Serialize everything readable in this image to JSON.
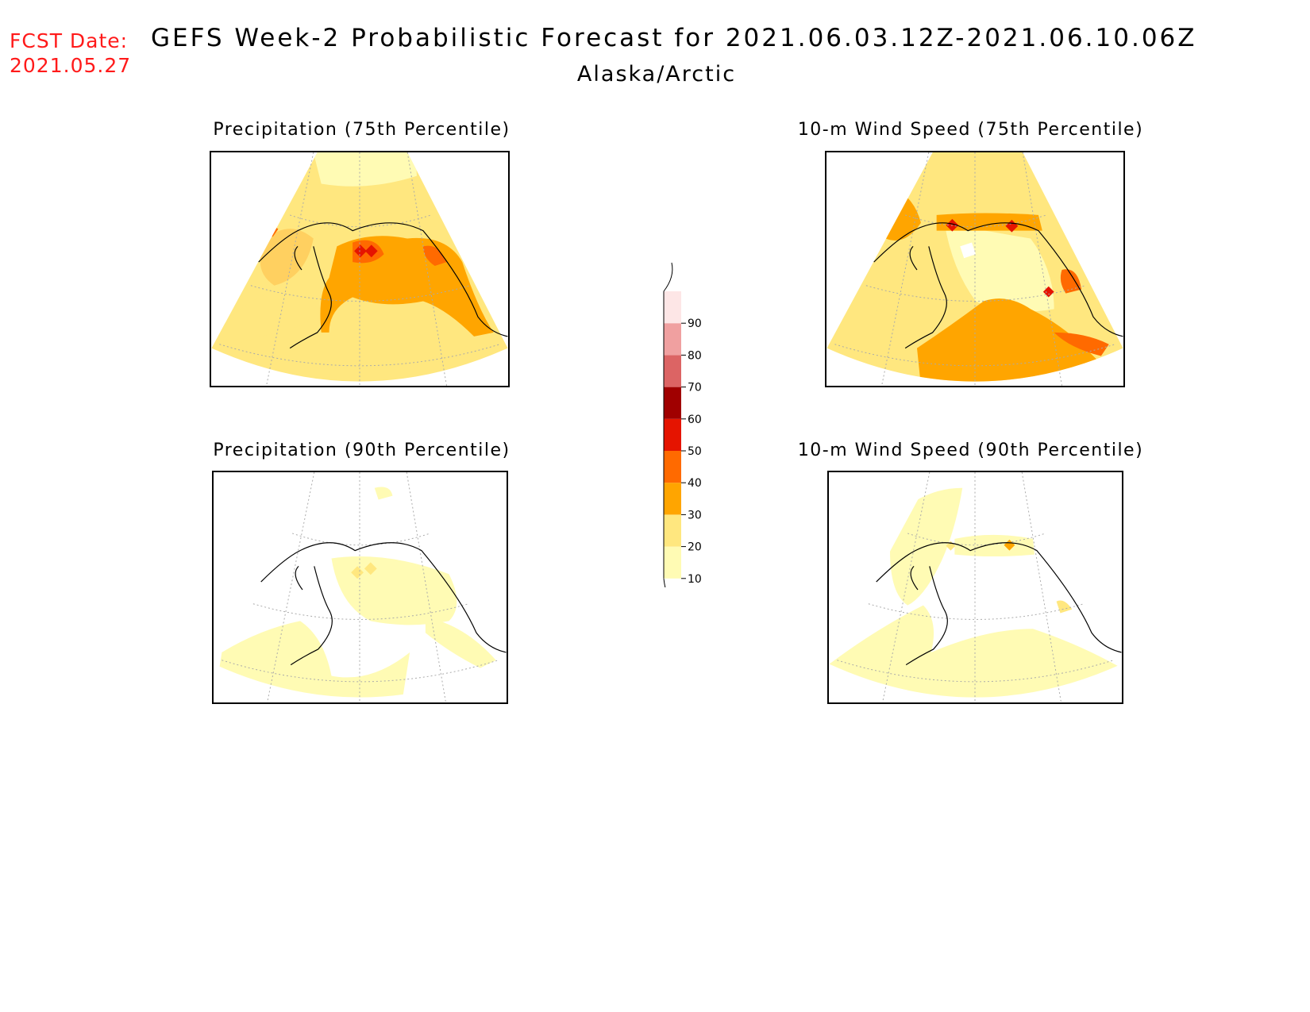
{
  "header": {
    "fcst_label": "FCST Date:",
    "fcst_date": "2021.05.27",
    "title": "GEFS Week-2 Probabilistic Forecast for 2021.06.03.12Z-2021.06.10.06Z",
    "region": "Alaska/Arctic"
  },
  "panels": [
    {
      "title": "Precipitation (75th Percentile)",
      "variable": "precipitation",
      "percentile": 75,
      "prevailing_probability_band": "20-30",
      "max_probability_band": "50-60"
    },
    {
      "title": "10-m Wind Speed (75th Percentile)",
      "variable": "10-m wind speed",
      "percentile": 75,
      "prevailing_probability_band": "20-30",
      "max_probability_band": "50-60"
    },
    {
      "title": "Precipitation (90th Percentile)",
      "variable": "precipitation",
      "percentile": 90,
      "prevailing_probability_band": "10-20",
      "max_probability_band": "20-30"
    },
    {
      "title": "10-m Wind Speed (90th Percentile)",
      "variable": "10-m wind speed",
      "percentile": 90,
      "prevailing_probability_band": "10-20",
      "max_probability_band": "30-40"
    }
  ],
  "colorbar": {
    "levels": [
      "10",
      "20",
      "30",
      "40",
      "50",
      "60",
      "70",
      "80",
      "90"
    ],
    "colors": [
      "#fffbb4",
      "#ffe77f",
      "#ffa500",
      "#ff6a00",
      "#e51400",
      "#a00000",
      "#dc6464",
      "#f0a0a0",
      "#fde6e6"
    ]
  },
  "colors": {
    "fcst_text": "#ff1a1a",
    "coast": "#000000",
    "graticule": "#aaaaaa"
  }
}
